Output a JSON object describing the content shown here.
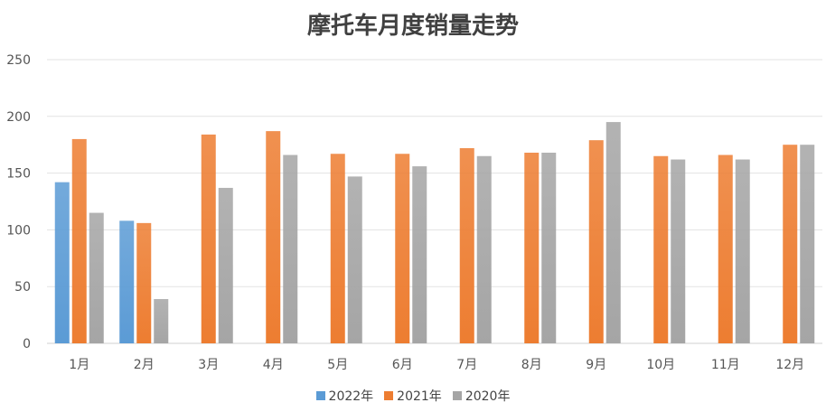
{
  "chart_data": {
    "type": "bar",
    "title": "摩托车月度销量走势",
    "categories": [
      "1月",
      "2月",
      "3月",
      "4月",
      "5月",
      "6月",
      "7月",
      "8月",
      "9月",
      "10月",
      "11月",
      "12月"
    ],
    "series": [
      {
        "name": "2022年",
        "color": "#5B9BD5",
        "values": [
          142,
          108,
          null,
          null,
          null,
          null,
          null,
          null,
          null,
          null,
          null,
          null
        ]
      },
      {
        "name": "2021年",
        "color": "#ED7D31",
        "values": [
          180,
          106,
          184,
          187,
          167,
          167,
          172,
          168,
          179,
          165,
          166,
          175
        ]
      },
      {
        "name": "2020年",
        "color": "#A5A5A5",
        "values": [
          115,
          39,
          137,
          166,
          147,
          156,
          165,
          168,
          195,
          162,
          162,
          175
        ]
      }
    ],
    "yticks": [
      "0",
      "50",
      "100",
      "150",
      "200",
      "250"
    ],
    "ylim": [
      0,
      250
    ],
    "grid": true,
    "legend_position": "bottom"
  }
}
